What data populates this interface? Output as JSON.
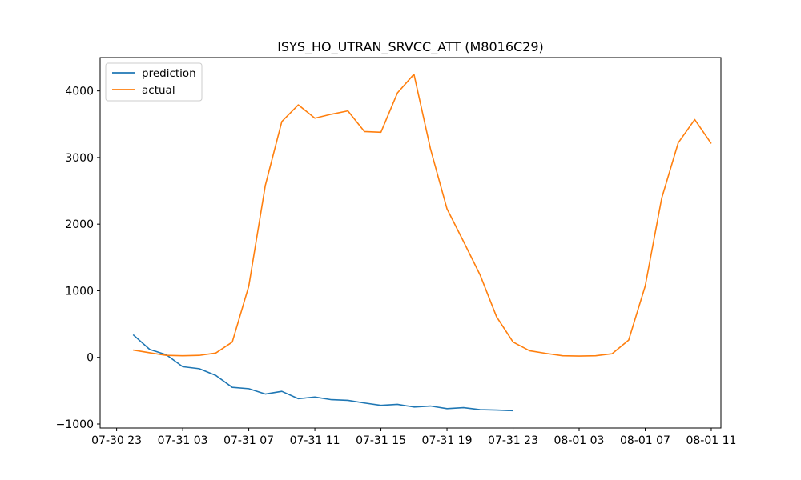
{
  "chart_data": {
    "type": "line",
    "title": "ISYS_HO_UTRAN_SRVCC_ATT (M8016C29)",
    "xlabel": "",
    "ylabel": "",
    "x_tick_labels": [
      "07-30 23",
      "07-31 03",
      "07-31 07",
      "07-31 11",
      "07-31 15",
      "07-31 19",
      "07-31 23",
      "08-01 03",
      "08-01 07",
      "08-01 11"
    ],
    "y_tick_labels": [
      "4000",
      "3000",
      "2000",
      "1000",
      "0",
      "−1000"
    ],
    "xlim": [
      "2024-07-30 22:00",
      "2024-08-01 11:35"
    ],
    "ylim": [
      -1060,
      4500
    ],
    "grid": false,
    "legend": "upper left",
    "series": [
      {
        "name": "prediction",
        "color": "#1f77b4",
        "x": [
          "07-31 00",
          "07-31 01",
          "07-31 02",
          "07-31 03",
          "07-31 04",
          "07-31 05",
          "07-31 06",
          "07-31 07",
          "07-31 08",
          "07-31 09",
          "07-31 10",
          "07-31 11",
          "07-31 12",
          "07-31 13",
          "07-31 14",
          "07-31 15",
          "07-31 16",
          "07-31 17",
          "07-31 18",
          "07-31 19",
          "07-31 20",
          "07-31 21",
          "07-31 22",
          "07-31 23"
        ],
        "values": [
          340,
          120,
          40,
          -140,
          -170,
          -270,
          -450,
          -470,
          -550,
          -510,
          -620,
          -595,
          -635,
          -645,
          -685,
          -720,
          -705,
          -745,
          -730,
          -770,
          -755,
          -785,
          -790,
          -800
        ]
      },
      {
        "name": "actual",
        "color": "#ff7f0e",
        "x": [
          "07-31 00",
          "07-31 01",
          "07-31 02",
          "07-31 03",
          "07-31 04",
          "07-31 05",
          "07-31 06",
          "07-31 07",
          "07-31 08",
          "07-31 09",
          "07-31 10",
          "07-31 11",
          "07-31 12",
          "07-31 13",
          "07-31 14",
          "07-31 15",
          "07-31 16",
          "07-31 17",
          "07-31 18",
          "07-31 19",
          "07-31 20",
          "07-31 21",
          "07-31 22",
          "07-31 23",
          "08-01 00",
          "08-01 01",
          "08-01 02",
          "08-01 03",
          "08-01 04",
          "08-01 05",
          "08-01 06",
          "08-01 07",
          "08-01 08",
          "08-01 09",
          "08-01 10",
          "08-01 11"
        ],
        "values": [
          110,
          70,
          30,
          25,
          30,
          65,
          230,
          1070,
          2580,
          3540,
          3790,
          3590,
          3650,
          3700,
          3390,
          3380,
          3970,
          4250,
          3130,
          2230,
          1740,
          1240,
          610,
          230,
          100,
          60,
          25,
          20,
          25,
          55,
          260,
          1070,
          2390,
          3220,
          3570,
          3210
        ]
      }
    ]
  }
}
